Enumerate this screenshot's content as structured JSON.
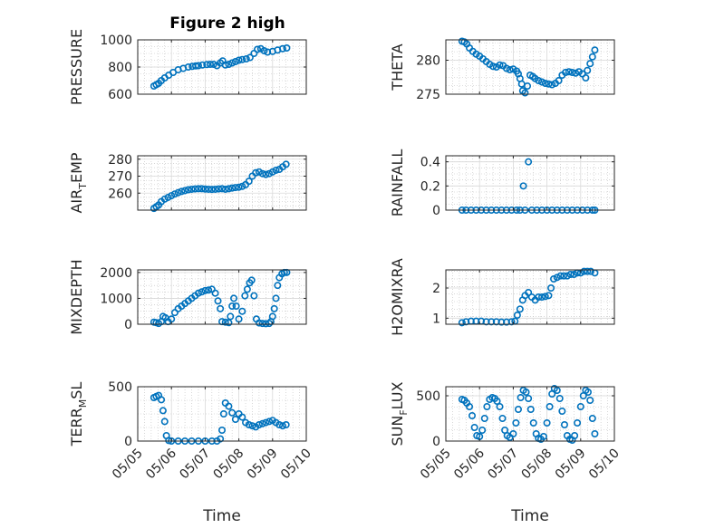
{
  "figure_title": "Figure 2 high",
  "chart_data": [
    {
      "type": "scatter",
      "ylabel": "PRESSURE",
      "title": "Figure 2 high",
      "xlabel": "",
      "ylim": [
        600,
        1000
      ],
      "yticks": [
        600,
        800,
        1000
      ],
      "grid": true,
      "show_xticklabels": false,
      "x": [
        5.48,
        5.55,
        5.62,
        5.7,
        5.8,
        5.92,
        6.05,
        6.2,
        6.35,
        6.5,
        6.62,
        6.72,
        6.8,
        6.92,
        7.05,
        7.15,
        7.25,
        7.35,
        7.45,
        7.52,
        7.6,
        7.7,
        7.8,
        7.9,
        8.0,
        8.1,
        8.22,
        8.33,
        8.45,
        8.55,
        8.65,
        8.75,
        8.85,
        9.0,
        9.15,
        9.3,
        9.42
      ],
      "y": [
        660,
        670,
        680,
        700,
        720,
        740,
        760,
        780,
        790,
        800,
        805,
        808,
        810,
        815,
        818,
        820,
        820,
        810,
        830,
        845,
        815,
        820,
        830,
        840,
        850,
        855,
        860,
        870,
        900,
        930,
        935,
        920,
        910,
        915,
        925,
        935,
        940
      ]
    },
    {
      "type": "scatter",
      "ylabel": "THETA",
      "xlabel": "",
      "ylim": [
        275,
        283
      ],
      "yticks": [
        275,
        280
      ],
      "grid": true,
      "show_xticklabels": false,
      "x": [
        5.48,
        5.55,
        5.62,
        5.7,
        5.8,
        5.9,
        6.0,
        6.1,
        6.2,
        6.3,
        6.4,
        6.5,
        6.6,
        6.7,
        6.8,
        6.9,
        7.0,
        7.1,
        7.15,
        7.2,
        7.25,
        7.28,
        7.35,
        7.42,
        7.5,
        7.58,
        7.65,
        7.75,
        7.85,
        7.95,
        8.05,
        8.15,
        8.25,
        8.35,
        8.45,
        8.55,
        8.65,
        8.75,
        8.85,
        8.95,
        9.05,
        9.15,
        9.2,
        9.28,
        9.35,
        9.42
      ],
      "y": [
        282.8,
        282.7,
        282.4,
        281.8,
        281.3,
        280.9,
        280.6,
        280.2,
        279.8,
        279.4,
        279.1,
        279.0,
        279.3,
        279.2,
        278.8,
        278.6,
        278.7,
        278.4,
        278.0,
        277.3,
        276.5,
        275.5,
        275.2,
        276.2,
        277.8,
        277.6,
        277.3,
        277.0,
        276.8,
        276.6,
        276.5,
        276.4,
        276.6,
        277.0,
        277.8,
        278.2,
        278.3,
        278.2,
        278.1,
        278.3,
        278.0,
        277.4,
        278.5,
        279.5,
        280.5,
        281.5
      ]
    },
    {
      "type": "scatter",
      "ylabel": "AIR_TEMP",
      "xlabel": "",
      "ylim": [
        250,
        282
      ],
      "yticks": [
        260,
        270,
        280
      ],
      "grid": true,
      "show_xticklabels": false,
      "x": [
        5.48,
        5.55,
        5.62,
        5.7,
        5.8,
        5.9,
        6.0,
        6.1,
        6.2,
        6.3,
        6.4,
        6.5,
        6.6,
        6.7,
        6.8,
        6.9,
        7.0,
        7.1,
        7.2,
        7.3,
        7.4,
        7.5,
        7.6,
        7.7,
        7.8,
        7.9,
        8.0,
        8.1,
        8.2,
        8.3,
        8.4,
        8.5,
        8.6,
        8.7,
        8.8,
        8.9,
        9.0,
        9.1,
        9.2,
        9.3,
        9.4
      ],
      "y": [
        251,
        252,
        253,
        255,
        256.5,
        257.5,
        258.5,
        259.5,
        260.3,
        261,
        261.5,
        262,
        262.3,
        262.5,
        262.6,
        262.6,
        262.4,
        262.3,
        262.2,
        262.3,
        262.5,
        262.6,
        262.3,
        262.6,
        263,
        263.3,
        263.5,
        264,
        265,
        267,
        270,
        272,
        272.5,
        271.5,
        271,
        271.5,
        272.5,
        273.5,
        274,
        275.5,
        277
      ]
    },
    {
      "type": "scatter",
      "ylabel": "RAINFALL",
      "xlabel": "",
      "ylim": [
        0,
        0.45
      ],
      "yticks": [
        0,
        0.2,
        0.4
      ],
      "grid": true,
      "show_xticklabels": false,
      "x": [
        5.48,
        5.6,
        5.75,
        5.9,
        6.05,
        6.2,
        6.35,
        6.5,
        6.65,
        6.8,
        6.95,
        7.1,
        7.2,
        7.3,
        7.35,
        7.45,
        7.55,
        7.7,
        7.85,
        8.0,
        8.15,
        8.3,
        8.45,
        8.6,
        8.75,
        8.9,
        9.05,
        9.2,
        9.35,
        9.42
      ],
      "y": [
        0,
        0,
        0,
        0,
        0,
        0,
        0,
        0,
        0,
        0,
        0,
        0,
        0,
        0.2,
        0,
        0.4,
        0,
        0,
        0,
        0,
        0,
        0,
        0,
        0,
        0,
        0,
        0,
        0,
        0,
        0
      ]
    },
    {
      "type": "scatter",
      "ylabel": "MIXDEPTH",
      "xlabel": "",
      "ylim": [
        0,
        2100
      ],
      "yticks": [
        0,
        1000,
        2000
      ],
      "grid": true,
      "show_xticklabels": false,
      "x": [
        5.48,
        5.55,
        5.62,
        5.7,
        5.75,
        5.82,
        5.9,
        6.0,
        6.1,
        6.2,
        6.3,
        6.4,
        6.5,
        6.6,
        6.7,
        6.8,
        6.9,
        7.0,
        7.1,
        7.2,
        7.3,
        7.38,
        7.45,
        7.5,
        7.6,
        7.7,
        7.75,
        7.8,
        7.85,
        7.92,
        8.0,
        8.1,
        8.18,
        8.25,
        8.32,
        8.38,
        8.45,
        8.52,
        8.6,
        8.7,
        8.8,
        8.9,
        8.95,
        9.0,
        9.05,
        9.1,
        9.15,
        9.2,
        9.28,
        9.35,
        9.42
      ],
      "y": [
        80,
        60,
        30,
        100,
        300,
        250,
        100,
        200,
        450,
        600,
        700,
        800,
        900,
        1000,
        1100,
        1200,
        1250,
        1300,
        1320,
        1350,
        1200,
        900,
        600,
        100,
        80,
        60,
        300,
        700,
        1000,
        700,
        200,
        500,
        1100,
        1350,
        1600,
        1700,
        1100,
        200,
        50,
        30,
        20,
        30,
        100,
        300,
        600,
        1000,
        1500,
        1800,
        1950,
        2000,
        2000
      ]
    },
    {
      "type": "scatter",
      "ylabel": "H2OMIXRA",
      "xlabel": "",
      "ylim": [
        0.8,
        2.6
      ],
      "yticks": [
        1,
        2
      ],
      "grid": true,
      "show_xticklabels": false,
      "x": [
        5.48,
        5.6,
        5.75,
        5.9,
        6.05,
        6.2,
        6.35,
        6.5,
        6.65,
        6.8,
        6.95,
        7.05,
        7.12,
        7.2,
        7.28,
        7.35,
        7.45,
        7.55,
        7.65,
        7.75,
        7.85,
        7.95,
        8.05,
        8.12,
        8.2,
        8.3,
        8.4,
        8.5,
        8.6,
        8.7,
        8.8,
        8.9,
        9.0,
        9.1,
        9.2,
        9.3,
        9.42
      ],
      "y": [
        0.85,
        0.88,
        0.9,
        0.9,
        0.9,
        0.88,
        0.88,
        0.88,
        0.87,
        0.87,
        0.88,
        0.9,
        1.1,
        1.3,
        1.6,
        1.75,
        1.85,
        1.7,
        1.6,
        1.7,
        1.7,
        1.72,
        1.75,
        2.0,
        2.3,
        2.35,
        2.4,
        2.4,
        2.4,
        2.45,
        2.45,
        2.5,
        2.5,
        2.55,
        2.55,
        2.55,
        2.5
      ]
    },
    {
      "type": "scatter",
      "ylabel": "TERR_MSL",
      "xlabel": "Time",
      "ylim": [
        0,
        500
      ],
      "yticks": [
        0,
        500
      ],
      "grid": true,
      "show_xticklabels": true,
      "x": [
        5.48,
        5.55,
        5.62,
        5.7,
        5.75,
        5.8,
        5.85,
        5.92,
        6.0,
        6.2,
        6.4,
        6.6,
        6.8,
        7.0,
        7.2,
        7.35,
        7.45,
        7.5,
        7.55,
        7.6,
        7.7,
        7.8,
        7.9,
        8.0,
        8.1,
        8.2,
        8.3,
        8.4,
        8.5,
        8.6,
        8.7,
        8.8,
        8.9,
        9.0,
        9.1,
        9.2,
        9.3,
        9.4
      ],
      "y": [
        400,
        410,
        420,
        380,
        280,
        180,
        50,
        5,
        0,
        0,
        0,
        0,
        0,
        0,
        0,
        0,
        20,
        100,
        250,
        350,
        320,
        260,
        200,
        250,
        220,
        170,
        150,
        140,
        130,
        150,
        160,
        170,
        180,
        190,
        170,
        150,
        140,
        150
      ]
    },
    {
      "type": "scatter",
      "ylabel": "SUN_FLUX",
      "xlabel": "Time",
      "ylim": [
        0,
        600
      ],
      "yticks": [
        0,
        500
      ],
      "grid": true,
      "show_xticklabels": true,
      "x": [
        5.48,
        5.55,
        5.62,
        5.7,
        5.78,
        5.85,
        5.92,
        6.0,
        6.08,
        6.15,
        6.22,
        6.3,
        6.38,
        6.45,
        6.52,
        6.6,
        6.68,
        6.75,
        6.82,
        6.9,
        7.0,
        7.08,
        7.15,
        7.22,
        7.3,
        7.38,
        7.45,
        7.52,
        7.6,
        7.68,
        7.75,
        7.82,
        7.9,
        8.0,
        8.08,
        8.15,
        8.22,
        8.3,
        8.38,
        8.45,
        8.52,
        8.6,
        8.68,
        8.75,
        8.82,
        8.9,
        9.0,
        9.08,
        9.15,
        9.22,
        9.28,
        9.35,
        9.42
      ],
      "y": [
        460,
        450,
        420,
        380,
        280,
        150,
        60,
        50,
        120,
        250,
        380,
        460,
        480,
        470,
        440,
        380,
        250,
        120,
        60,
        40,
        80,
        200,
        350,
        480,
        560,
        540,
        470,
        350,
        200,
        80,
        30,
        20,
        50,
        200,
        380,
        520,
        580,
        560,
        470,
        330,
        180,
        60,
        20,
        10,
        60,
        200,
        380,
        500,
        560,
        540,
        450,
        250,
        80
      ]
    }
  ],
  "x_axis": {
    "min": 5.0,
    "max": 10.0,
    "ticks": [
      5,
      6,
      7,
      8,
      9,
      10
    ],
    "tick_labels": [
      "05/05",
      "05/06",
      "05/07",
      "05/08",
      "05/09",
      "05/10"
    ],
    "label": "Time"
  },
  "colors": {
    "marker": "#0072BD",
    "axes": "#262626",
    "grid": "#d9d9d9",
    "minor_grid": "#bfbfbf"
  }
}
